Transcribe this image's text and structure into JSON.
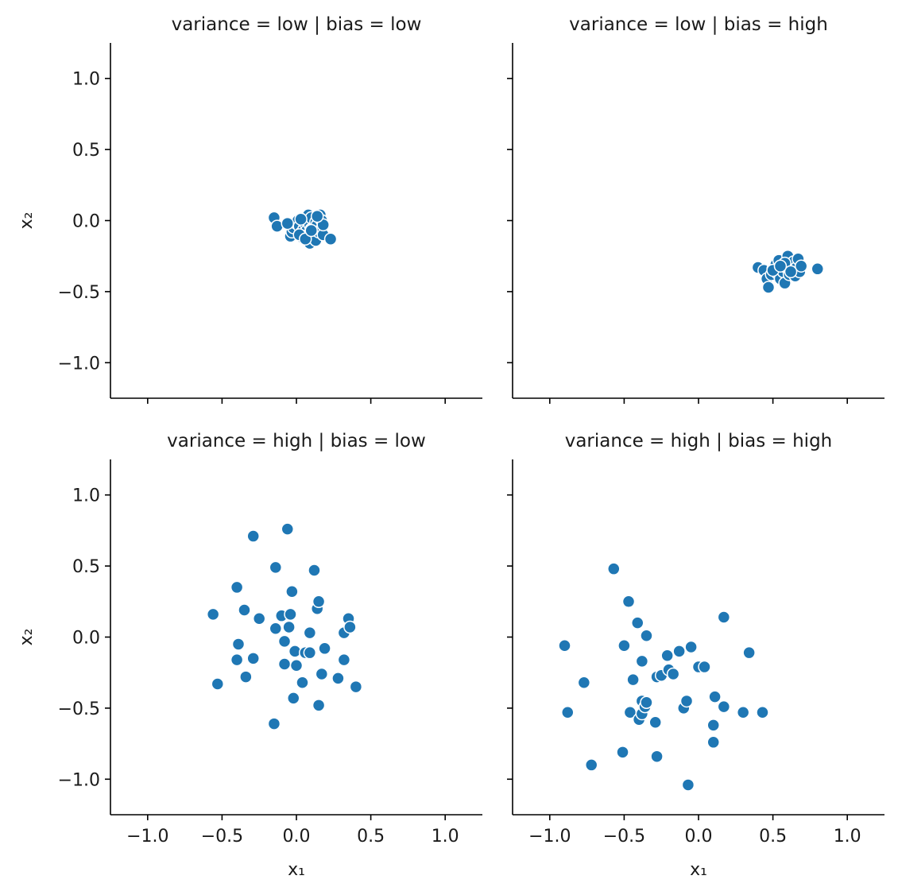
{
  "chart_data": [
    {
      "type": "scatter",
      "title": "variance = low | bias = low",
      "xlabel": "",
      "ylabel": "x₂",
      "xlim": [
        -1.25,
        1.25
      ],
      "ylim": [
        -1.25,
        1.25
      ],
      "points": [
        [
          -0.15,
          0.02
        ],
        [
          -0.13,
          -0.04
        ],
        [
          -0.05,
          -0.03
        ],
        [
          -0.04,
          -0.11
        ],
        [
          -0.03,
          -0.08
        ],
        [
          -0.02,
          -0.05
        ],
        [
          0.0,
          -0.02
        ],
        [
          0.01,
          0.0
        ],
        [
          0.02,
          -0.04
        ],
        [
          0.03,
          -0.09
        ],
        [
          0.04,
          -0.12
        ],
        [
          0.05,
          -0.06
        ],
        [
          0.05,
          0.01
        ],
        [
          0.06,
          -0.02
        ],
        [
          0.07,
          -0.07
        ],
        [
          0.08,
          -0.1
        ],
        [
          0.08,
          0.04
        ],
        [
          0.09,
          -0.03
        ],
        [
          0.09,
          -0.16
        ],
        [
          0.1,
          -0.06
        ],
        [
          0.1,
          0.02
        ],
        [
          0.11,
          -0.12
        ],
        [
          0.12,
          -0.05
        ],
        [
          0.12,
          -0.09
        ],
        [
          0.13,
          -0.01
        ],
        [
          0.13,
          -0.14
        ],
        [
          0.14,
          -0.03
        ],
        [
          0.15,
          -0.08
        ],
        [
          0.16,
          0.04
        ],
        [
          0.17,
          0.0
        ],
        [
          0.17,
          -0.06
        ],
        [
          0.18,
          -0.1
        ],
        [
          0.18,
          -0.03
        ],
        [
          0.23,
          -0.13
        ],
        [
          -0.06,
          -0.02
        ],
        [
          0.02,
          -0.1
        ],
        [
          0.06,
          -0.13
        ],
        [
          0.1,
          -0.07
        ],
        [
          0.03,
          0.01
        ],
        [
          0.14,
          0.03
        ]
      ]
    },
    {
      "type": "scatter",
      "title": "variance = low | bias = high",
      "xlabel": "",
      "ylabel": "",
      "xlim": [
        -1.25,
        1.25
      ],
      "ylim": [
        -1.25,
        1.25
      ],
      "points": [
        [
          0.4,
          -0.33
        ],
        [
          0.44,
          -0.35
        ],
        [
          0.46,
          -0.41
        ],
        [
          0.47,
          -0.47
        ],
        [
          0.49,
          -0.38
        ],
        [
          0.5,
          -0.34
        ],
        [
          0.52,
          -0.31
        ],
        [
          0.53,
          -0.37
        ],
        [
          0.54,
          -0.28
        ],
        [
          0.55,
          -0.41
        ],
        [
          0.56,
          -0.33
        ],
        [
          0.57,
          -0.36
        ],
        [
          0.58,
          -0.44
        ],
        [
          0.59,
          -0.3
        ],
        [
          0.6,
          -0.34
        ],
        [
          0.6,
          -0.25
        ],
        [
          0.61,
          -0.38
        ],
        [
          0.62,
          -0.31
        ],
        [
          0.63,
          -0.35
        ],
        [
          0.64,
          -0.29
        ],
        [
          0.65,
          -0.39
        ],
        [
          0.66,
          -0.33
        ],
        [
          0.67,
          -0.27
        ],
        [
          0.68,
          -0.36
        ],
        [
          0.69,
          -0.32
        ],
        [
          0.8,
          -0.34
        ],
        [
          0.5,
          -0.35
        ],
        [
          0.58,
          -0.3
        ],
        [
          0.62,
          -0.36
        ],
        [
          0.55,
          -0.32
        ]
      ]
    },
    {
      "type": "scatter",
      "title": "variance = high | bias = low",
      "xlabel": "x₁",
      "ylabel": "x₂",
      "xlim": [
        -1.25,
        1.25
      ],
      "ylim": [
        -1.25,
        1.25
      ],
      "points": [
        [
          -0.56,
          0.16
        ],
        [
          -0.53,
          -0.33
        ],
        [
          -0.4,
          0.35
        ],
        [
          -0.39,
          -0.05
        ],
        [
          -0.4,
          -0.16
        ],
        [
          -0.35,
          0.19
        ],
        [
          -0.34,
          -0.28
        ],
        [
          -0.29,
          0.71
        ],
        [
          -0.29,
          -0.15
        ],
        [
          -0.25,
          0.13
        ],
        [
          -0.14,
          0.06
        ],
        [
          -0.14,
          0.49
        ],
        [
          -0.15,
          -0.61
        ],
        [
          -0.1,
          0.15
        ],
        [
          -0.08,
          -0.03
        ],
        [
          -0.08,
          -0.19
        ],
        [
          -0.06,
          0.76
        ],
        [
          -0.05,
          0.07
        ],
        [
          -0.04,
          0.16
        ],
        [
          -0.03,
          0.32
        ],
        [
          -0.02,
          -0.43
        ],
        [
          -0.01,
          -0.1
        ],
        [
          0.0,
          -0.2
        ],
        [
          0.04,
          -0.32
        ],
        [
          0.06,
          -0.11
        ],
        [
          0.09,
          -0.11
        ],
        [
          0.09,
          0.03
        ],
        [
          0.12,
          0.47
        ],
        [
          0.14,
          0.2
        ],
        [
          0.15,
          0.25
        ],
        [
          0.15,
          -0.48
        ],
        [
          0.17,
          -0.26
        ],
        [
          0.19,
          -0.08
        ],
        [
          0.28,
          -0.29
        ],
        [
          0.32,
          0.03
        ],
        [
          0.32,
          -0.16
        ],
        [
          0.35,
          0.13
        ],
        [
          0.36,
          0.07
        ],
        [
          0.4,
          -0.35
        ]
      ]
    },
    {
      "type": "scatter",
      "title": "variance = high | bias = high",
      "xlabel": "x₁",
      "ylabel": "",
      "xlim": [
        -1.25,
        1.25
      ],
      "ylim": [
        -1.25,
        1.25
      ],
      "points": [
        [
          -0.9,
          -0.06
        ],
        [
          -0.88,
          -0.53
        ],
        [
          -0.77,
          -0.32
        ],
        [
          -0.72,
          -0.9
        ],
        [
          -0.57,
          0.48
        ],
        [
          -0.51,
          -0.81
        ],
        [
          -0.5,
          -0.06
        ],
        [
          -0.47,
          0.25
        ],
        [
          -0.46,
          -0.53
        ],
        [
          -0.44,
          -0.3
        ],
        [
          -0.41,
          0.1
        ],
        [
          -0.4,
          -0.58
        ],
        [
          -0.38,
          -0.17
        ],
        [
          -0.38,
          -0.54
        ],
        [
          -0.38,
          -0.45
        ],
        [
          -0.36,
          -0.49
        ],
        [
          -0.35,
          -0.46
        ],
        [
          -0.35,
          0.01
        ],
        [
          -0.29,
          -0.6
        ],
        [
          -0.28,
          -0.84
        ],
        [
          -0.28,
          -0.28
        ],
        [
          -0.25,
          -0.27
        ],
        [
          -0.21,
          -0.13
        ],
        [
          -0.2,
          -0.23
        ],
        [
          -0.17,
          -0.26
        ],
        [
          -0.13,
          -0.1
        ],
        [
          -0.1,
          -0.5
        ],
        [
          -0.08,
          -0.45
        ],
        [
          -0.07,
          -1.04
        ],
        [
          -0.05,
          -0.07
        ],
        [
          0.0,
          -0.21
        ],
        [
          0.04,
          -0.21
        ],
        [
          0.1,
          -0.62
        ],
        [
          0.1,
          -0.74
        ],
        [
          0.11,
          -0.42
        ],
        [
          0.17,
          0.14
        ],
        [
          0.17,
          -0.49
        ],
        [
          0.3,
          -0.53
        ],
        [
          0.34,
          -0.11
        ],
        [
          0.43,
          -0.53
        ]
      ]
    }
  ],
  "ticks": {
    "x": [
      -1.0,
      -0.5,
      0.0,
      0.5,
      1.0
    ],
    "x_labels": [
      "−1.0",
      "−0.5",
      "0.0",
      "0.5",
      "1.0"
    ],
    "y": [
      1.0,
      0.5,
      0.0,
      -0.5,
      -1.0
    ],
    "y_labels": [
      "1.0",
      "0.5",
      "0.0",
      "−0.5",
      "−1.0"
    ]
  },
  "colors": {
    "marker": "#1f77b4",
    "marker_edge": "#ffffff"
  }
}
